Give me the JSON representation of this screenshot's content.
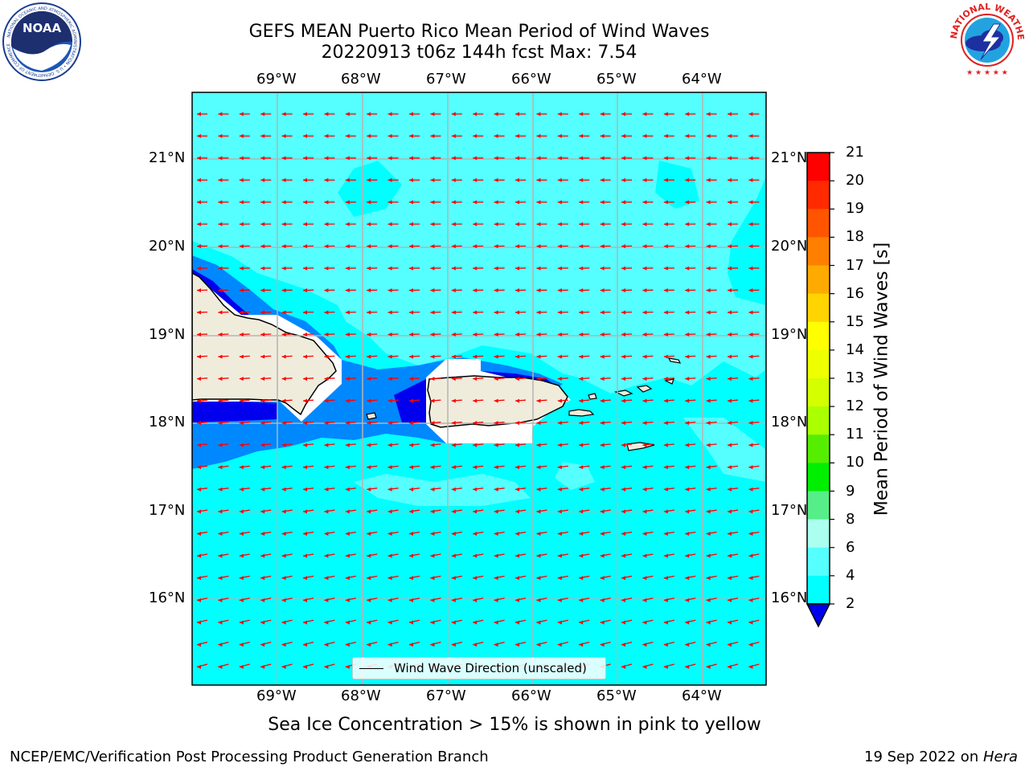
{
  "header": {
    "title_line1": "GEFS MEAN Puerto Rico Mean Period of Wind Waves",
    "title_line2": "20220913 t06z 144h fcst   Max: 7.54"
  },
  "logos": {
    "noaa": "NOAA",
    "noaa_ring_text": "NATIONAL OCEANIC AND ATMOSPHERIC ADMINISTRATION • U.S. DEPARTMENT OF COMMERCE",
    "nws_ring_text": "NATIONAL WEATHER SERVICE"
  },
  "map": {
    "lon_labels": [
      "69°W",
      "68°W",
      "67°W",
      "66°W",
      "65°W",
      "64°W"
    ],
    "lat_labels": [
      "21°N",
      "20°N",
      "19°N",
      "18°N",
      "17°N",
      "16°N"
    ],
    "arrow_color": "#ff0000",
    "land_color": "#efecdc",
    "ocean_color": "#00ffff",
    "legend_label": "Wind Wave Direction (unscaled)"
  },
  "colorbar": {
    "label": "Mean Period of Wind Waves [s]",
    "ticks": [
      "21",
      "20",
      "19",
      "18",
      "17",
      "16",
      "15",
      "14",
      "13",
      "12",
      "11",
      "10",
      "9",
      "8",
      "6",
      "4",
      "2"
    ],
    "colors": [
      "#ff0000",
      "#ff2a00",
      "#ff5500",
      "#ff8000",
      "#ffaa00",
      "#ffd400",
      "#ffff00",
      "#eeff00",
      "#d4ff00",
      "#aaff00",
      "#55ee00",
      "#00ee00",
      "#55ee88",
      "#aaffee",
      "#55ffff",
      "#00ffff",
      "#0088ff"
    ],
    "extend_color": "#0000ee"
  },
  "caption": "Sea Ice Concentration > 15% is shown in pink to yellow",
  "footer": {
    "left": "NCEP/EMC/Verification Post Processing Product Generation Branch",
    "date": "19 Sep 2022 on ",
    "machine": "Hera"
  }
}
